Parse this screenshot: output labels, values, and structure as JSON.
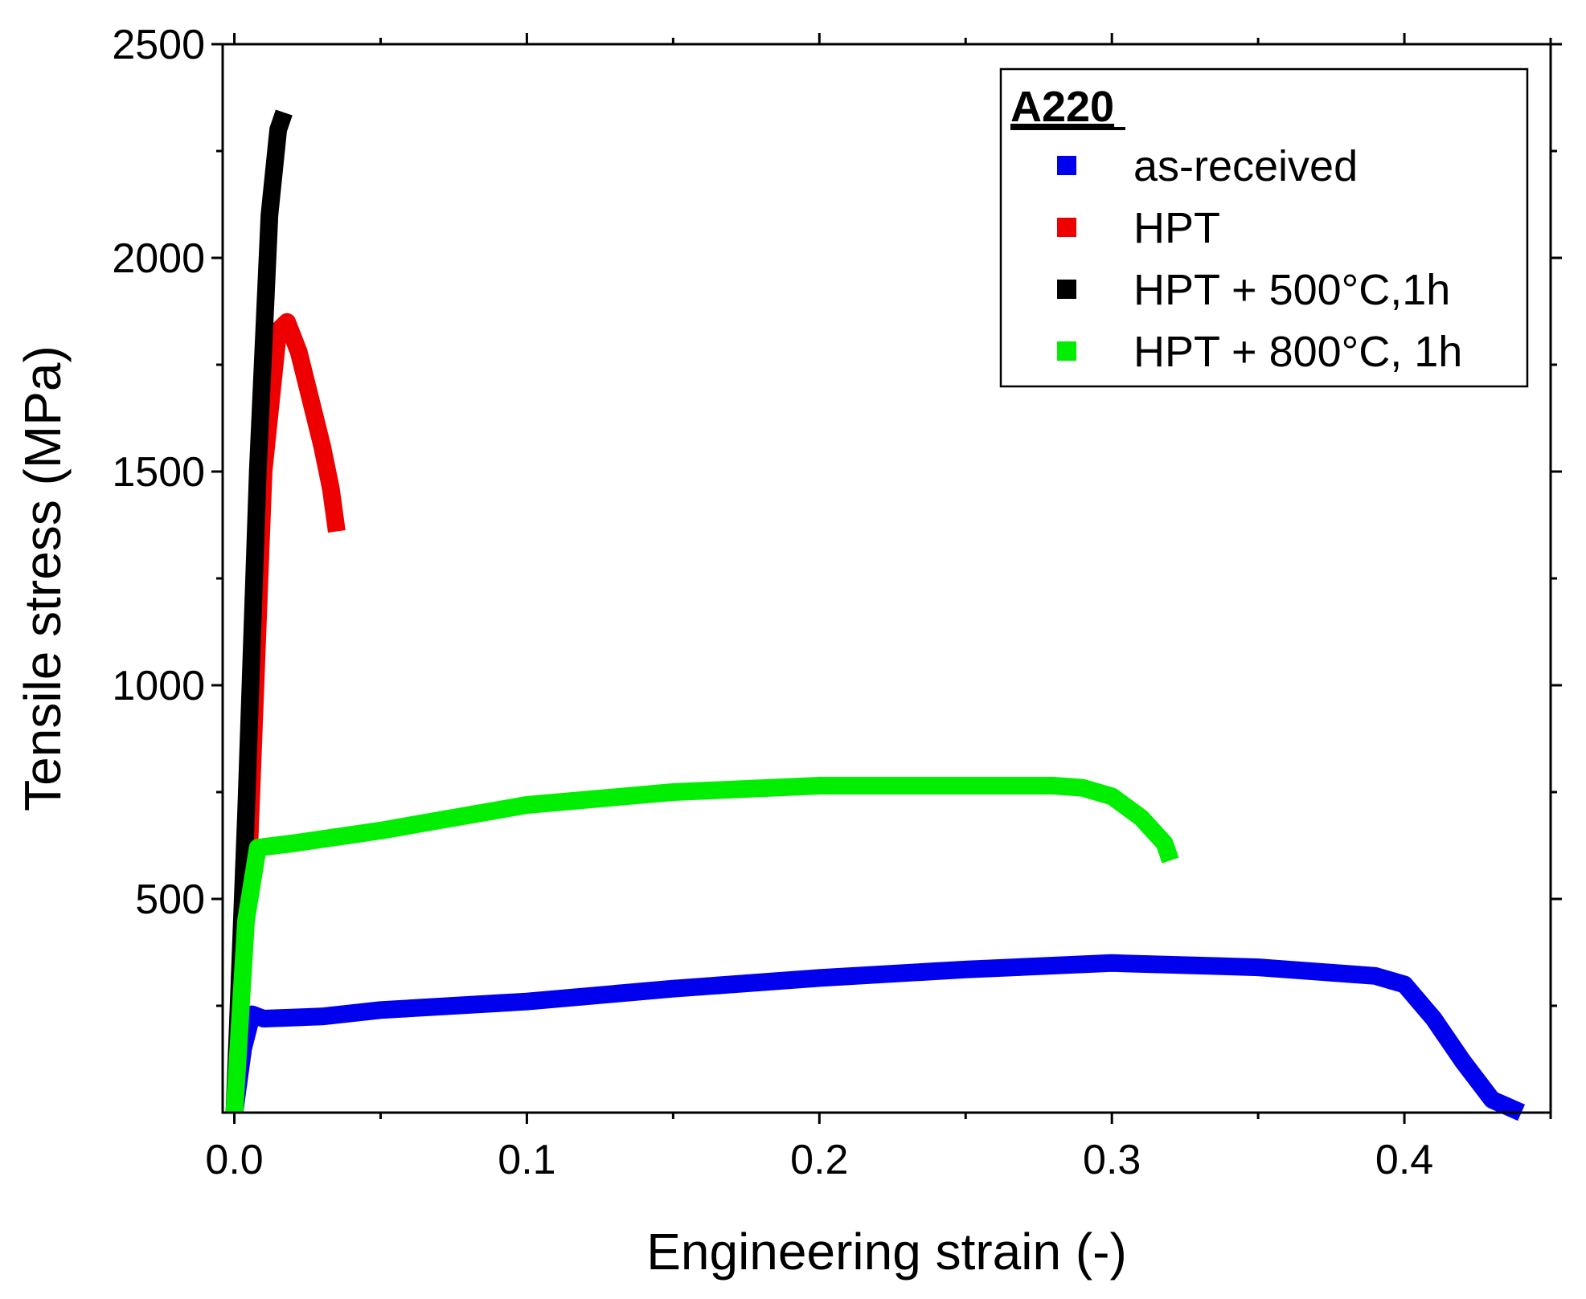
{
  "chart_data": {
    "type": "line",
    "title": "",
    "xlabel": "Engineering strain (-)",
    "ylabel": "Tensile stress (MPa)",
    "xlim": [
      -0.004,
      0.45
    ],
    "ylim": [
      0,
      2500
    ],
    "x_ticks": [
      0.0,
      0.1,
      0.2,
      0.3,
      0.4
    ],
    "x_tick_labels": [
      "0.0",
      "0.1",
      "0.2",
      "0.3",
      "0.4"
    ],
    "y_ticks": [
      500,
      1000,
      1500,
      2000,
      2500
    ],
    "y_tick_labels": [
      "500",
      "1000",
      "1500",
      "2000",
      "2500"
    ],
    "grid": false,
    "legend": {
      "title": "A220",
      "position": "top-right",
      "entries": [
        {
          "label": "as-received",
          "color": "#0000ee"
        },
        {
          "label": "HPT",
          "color": "#ee0000"
        },
        {
          "label": "HPT + 500°C,1h",
          "color": "#000000"
        },
        {
          "label": "HPT + 800°C, 1h",
          "color": "#00ee00"
        }
      ]
    },
    "series": [
      {
        "name": "as-received",
        "color": "#0000ee",
        "x": [
          0.0,
          0.003,
          0.006,
          0.01,
          0.03,
          0.05,
          0.1,
          0.15,
          0.2,
          0.25,
          0.3,
          0.35,
          0.39,
          0.4,
          0.41,
          0.42,
          0.43,
          0.44
        ],
        "y": [
          0,
          150,
          230,
          220,
          225,
          240,
          260,
          290,
          315,
          335,
          350,
          340,
          320,
          300,
          220,
          120,
          30,
          0
        ]
      },
      {
        "name": "HPT",
        "color": "#ee0000",
        "x": [
          0.0,
          0.005,
          0.01,
          0.015,
          0.018,
          0.022,
          0.026,
          0.03,
          0.033,
          0.035
        ],
        "y": [
          0,
          600,
          1500,
          1830,
          1850,
          1780,
          1670,
          1560,
          1460,
          1360
        ]
      },
      {
        "name": "HPT + 500°C,1h",
        "color": "#000000",
        "x": [
          0.0,
          0.004,
          0.008,
          0.012,
          0.015,
          0.017
        ],
        "y": [
          0,
          700,
          1500,
          2100,
          2300,
          2340
        ]
      },
      {
        "name": "HPT + 800°C, 1h",
        "color": "#00ee00",
        "x": [
          0.0,
          0.004,
          0.008,
          0.02,
          0.05,
          0.1,
          0.15,
          0.2,
          0.25,
          0.28,
          0.29,
          0.3,
          0.31,
          0.318,
          0.32
        ],
        "y": [
          0,
          450,
          620,
          630,
          660,
          720,
          750,
          765,
          765,
          765,
          760,
          740,
          690,
          630,
          590
        ]
      }
    ]
  }
}
